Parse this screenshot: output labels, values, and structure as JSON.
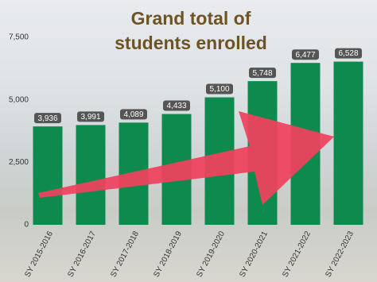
{
  "chart_data": {
    "type": "bar",
    "title": "Grand total of students enrolled",
    "categories": [
      "SY 2015-2016",
      "SY 2016-2017",
      "SY 2017-2018",
      "SY 2018-2019",
      "SY 2019-2020",
      "SY 2020-2021",
      "SY 2021-2022",
      "SY 2022-2023"
    ],
    "values": [
      3936,
      3991,
      4089,
      4433,
      5100,
      5748,
      6477,
      6528
    ],
    "value_labels": [
      "3,936",
      "3,991",
      "4,089",
      "4,433",
      "5,100",
      "5,748",
      "6,477",
      "6,528"
    ],
    "color": "#0e8a4f",
    "ylim": [
      0,
      7500
    ],
    "yticks": [
      0,
      {
        "value": 2500,
        "label": "2,500"
      },
      {
        "value": 5000,
        "label": "5,000"
      },
      {
        "value": 7500,
        "label": "7,500"
      }
    ],
    "grid": false
  }
}
